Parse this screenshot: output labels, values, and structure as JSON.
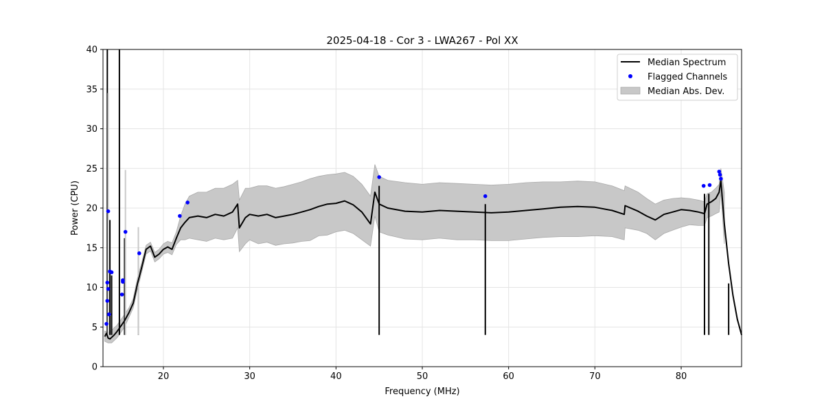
{
  "chart_data": {
    "type": "line",
    "title": "2025-04-18 - Cor 3 - LWA267 - Pol XX",
    "xlabel": "Frequency (MHz)",
    "ylabel": "Power (CPU)",
    "xlim": [
      13.0,
      87.0
    ],
    "ylim": [
      0,
      40
    ],
    "xticks": [
      20,
      30,
      40,
      50,
      60,
      70,
      80
    ],
    "yticks": [
      0,
      5,
      10,
      15,
      20,
      25,
      30,
      35,
      40
    ],
    "grid": true,
    "legend_position": "top-right",
    "legend": [
      "Median Spectrum",
      "Flagged Channels",
      "Median Abs. Dev."
    ],
    "series": [
      {
        "name": "Median Spectrum",
        "color": "#000000",
        "x": [
          13.2,
          13.4,
          13.6,
          13.8,
          14.0,
          14.3,
          14.6,
          15.0,
          15.5,
          16.0,
          16.5,
          17.0,
          17.5,
          18.0,
          18.5,
          19.0,
          19.5,
          20.0,
          20.5,
          21.0,
          21.5,
          22.0,
          22.5,
          23.0,
          24.0,
          25.0,
          26.0,
          27.0,
          28.0,
          28.6,
          28.8,
          29.5,
          30.0,
          31.0,
          32.0,
          33.0,
          34.0,
          35.0,
          36.0,
          37.0,
          38.0,
          39.0,
          40.0,
          41.0,
          42.0,
          43.0,
          44.0,
          44.5,
          45.0,
          46.0,
          48.0,
          50.0,
          52.0,
          54.0,
          56.0,
          58.0,
          60.0,
          62.0,
          64.0,
          66.0,
          68.0,
          70.0,
          72.0,
          73.4,
          73.5,
          75.0,
          76.0,
          77.0,
          78.0,
          79.0,
          80.0,
          81.0,
          82.0,
          82.7,
          83.0,
          83.5,
          84.0,
          84.4,
          84.6,
          85.0,
          85.5,
          86.0,
          86.5,
          87.0
        ],
        "y": [
          3.8,
          4.2,
          3.6,
          3.5,
          3.7,
          4.0,
          4.4,
          5.0,
          5.8,
          6.8,
          8.0,
          10.5,
          12.6,
          14.8,
          15.2,
          13.8,
          14.2,
          14.8,
          15.1,
          14.8,
          16.2,
          17.5,
          18.2,
          18.8,
          19.0,
          18.8,
          19.2,
          19.0,
          19.5,
          20.5,
          17.5,
          18.8,
          19.2,
          19.0,
          19.2,
          18.8,
          19.0,
          19.2,
          19.5,
          19.8,
          20.2,
          20.5,
          20.6,
          20.9,
          20.4,
          19.5,
          18.0,
          22.0,
          20.5,
          20.0,
          19.6,
          19.5,
          19.7,
          19.6,
          19.5,
          19.4,
          19.5,
          19.7,
          19.9,
          20.1,
          20.2,
          20.1,
          19.7,
          19.2,
          20.3,
          19.6,
          19.0,
          18.5,
          19.2,
          19.5,
          19.8,
          19.7,
          19.5,
          19.3,
          20.5,
          20.8,
          21.2,
          22.0,
          23.5,
          18.0,
          13.0,
          9.0,
          6.0,
          4.0
        ]
      },
      {
        "name": "Median Abs. Dev.",
        "color": "#c8c8c8",
        "x": [
          13.2,
          13.6,
          14.0,
          14.6,
          15.0,
          15.5,
          16.0,
          16.5,
          17.0,
          17.5,
          18.0,
          18.5,
          19.0,
          19.5,
          20.0,
          20.5,
          21.0,
          21.5,
          22.0,
          22.5,
          23.0,
          24.0,
          25.0,
          26.0,
          27.0,
          28.0,
          28.6,
          28.8,
          29.5,
          30.0,
          31.0,
          32.0,
          33.0,
          34.0,
          35.0,
          36.0,
          37.0,
          38.0,
          39.0,
          40.0,
          41.0,
          42.0,
          43.0,
          44.0,
          44.5,
          45.0,
          46.0,
          48.0,
          50.0,
          52.0,
          54.0,
          56.0,
          58.0,
          60.0,
          62.0,
          64.0,
          66.0,
          68.0,
          70.0,
          72.0,
          73.4,
          73.5,
          75.0,
          76.0,
          77.0,
          78.0,
          79.0,
          80.0,
          81.0,
          82.0,
          82.7,
          83.0,
          83.5,
          84.0,
          84.4,
          84.6,
          85.0
        ],
        "upper": [
          4.5,
          4.3,
          4.6,
          5.2,
          5.8,
          6.6,
          7.4,
          8.6,
          11.2,
          13.2,
          15.3,
          15.7,
          14.4,
          14.8,
          15.5,
          15.8,
          15.6,
          17.0,
          19.0,
          20.5,
          21.5,
          22.0,
          22.0,
          22.5,
          22.5,
          23.0,
          23.5,
          21.0,
          22.5,
          22.5,
          22.8,
          22.8,
          22.5,
          22.7,
          23.0,
          23.3,
          23.7,
          24.0,
          24.2,
          24.3,
          24.5,
          24.0,
          23.0,
          21.5,
          25.5,
          24.0,
          23.5,
          23.2,
          23.0,
          23.2,
          23.1,
          23.0,
          22.9,
          23.0,
          23.2,
          23.3,
          23.3,
          23.4,
          23.3,
          22.8,
          22.2,
          22.8,
          22.0,
          21.2,
          20.5,
          21.0,
          21.2,
          21.3,
          21.2,
          21.0,
          20.8,
          21.8,
          22.0,
          22.5,
          23.0,
          25.0,
          22.0
        ],
        "lower": [
          3.2,
          3.0,
          3.0,
          3.6,
          4.2,
          5.0,
          6.2,
          7.4,
          9.8,
          12.0,
          14.2,
          14.6,
          13.2,
          13.6,
          14.2,
          14.4,
          14.1,
          15.4,
          16.0,
          16.0,
          16.2,
          16.0,
          15.8,
          16.2,
          16.0,
          16.2,
          17.5,
          14.5,
          15.5,
          16.0,
          15.5,
          15.7,
          15.3,
          15.5,
          15.6,
          15.8,
          15.9,
          16.5,
          16.6,
          17.0,
          17.2,
          16.8,
          16.0,
          15.2,
          19.0,
          17.0,
          16.6,
          16.1,
          16.0,
          16.2,
          16.0,
          16.0,
          15.9,
          15.9,
          16.1,
          16.3,
          16.4,
          16.4,
          16.5,
          16.4,
          16.0,
          17.5,
          17.2,
          16.8,
          16.0,
          16.8,
          17.2,
          17.6,
          17.9,
          17.8,
          17.8,
          18.8,
          19.0,
          19.3,
          19.5,
          22.0,
          15.5
        ]
      }
    ],
    "spikes": [
      {
        "x": 13.5,
        "y": 40.0,
        "color": "#000000"
      },
      {
        "x": 13.6,
        "y": 34.5,
        "color": "#c8c8c8"
      },
      {
        "x": 13.8,
        "y": 18.5,
        "color": "#000000"
      },
      {
        "x": 14.0,
        "y": 11.5,
        "color": "#000000"
      },
      {
        "x": 14.9,
        "y": 40.0,
        "color": "#000000"
      },
      {
        "x": 15.5,
        "y": 16.2,
        "color": "#000000"
      },
      {
        "x": 15.6,
        "y": 24.8,
        "color": "#c8c8c8"
      },
      {
        "x": 17.1,
        "y": 13.8,
        "color": "#000000"
      },
      {
        "x": 17.1,
        "y": 17.6,
        "color": "#c8c8c8"
      },
      {
        "x": 45.0,
        "y": 22.8,
        "color": "#000000"
      },
      {
        "x": 57.3,
        "y": 20.5,
        "color": "#000000"
      },
      {
        "x": 82.7,
        "y": 21.8,
        "color": "#000000"
      },
      {
        "x": 83.2,
        "y": 21.8,
        "color": "#000000"
      },
      {
        "x": 85.5,
        "y": 10.5,
        "color": "#000000"
      }
    ],
    "flagged_channels": {
      "name": "Flagged Channels",
      "color": "#0000ff",
      "x": [
        13.4,
        13.5,
        13.5,
        13.6,
        13.6,
        13.7,
        13.8,
        14.0,
        15.2,
        15.3,
        15.3,
        15.6,
        17.2,
        21.9,
        22.8,
        45.0,
        57.3,
        82.6,
        83.3,
        84.4,
        84.5,
        84.6
      ],
      "y": [
        5.4,
        10.6,
        8.3,
        9.8,
        19.6,
        6.6,
        12.0,
        11.9,
        9.1,
        10.7,
        10.9,
        17.0,
        14.3,
        19.0,
        20.7,
        23.9,
        21.5,
        22.8,
        22.9,
        24.6,
        24.2,
        23.7
      ]
    }
  }
}
